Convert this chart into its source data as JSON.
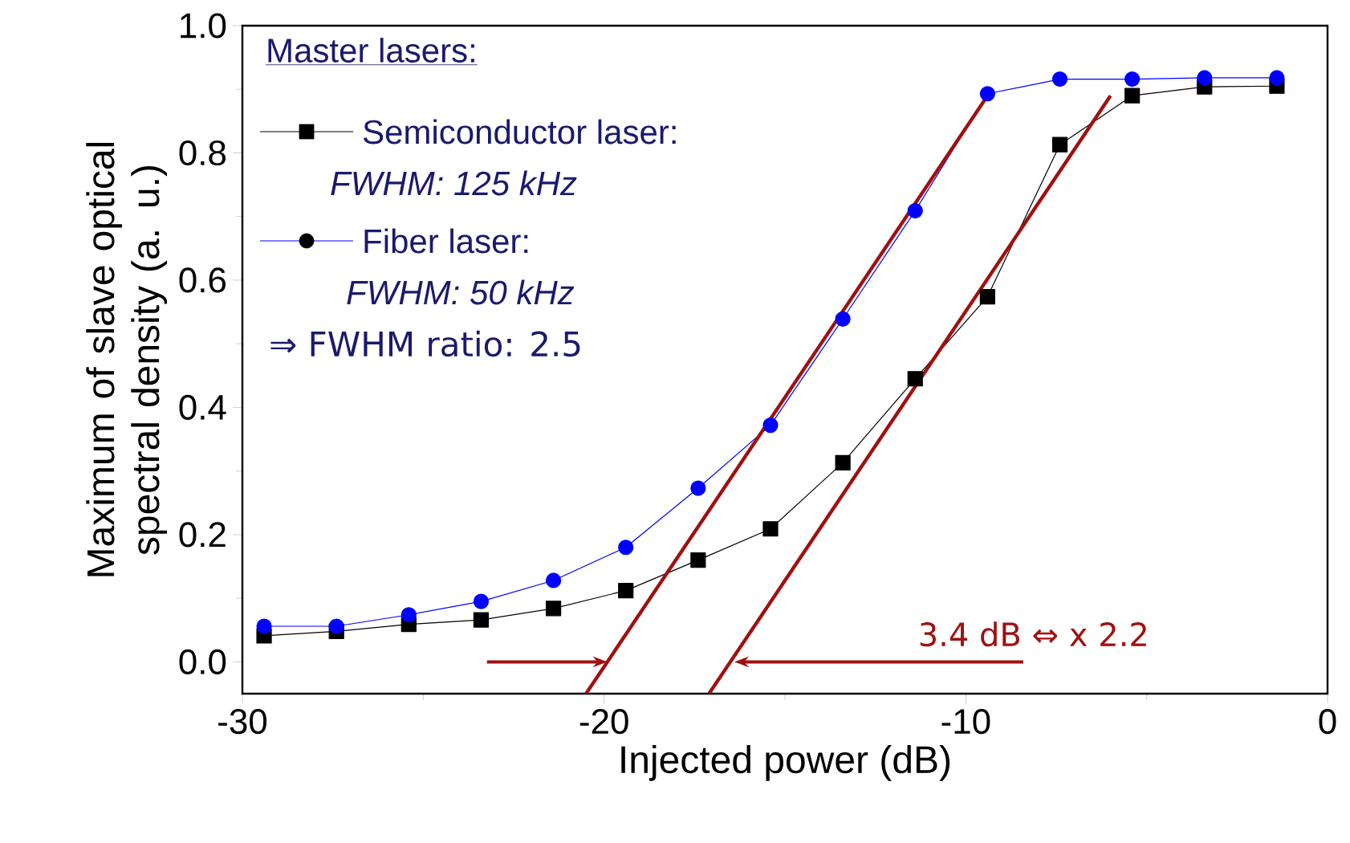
{
  "chart_data": {
    "type": "line",
    "xlabel": "Injected power (dB)",
    "ylabel": "Maximum of slave optical spectral density (a. u.)",
    "legend_title": "Master lasers:",
    "legend": "top left",
    "xlim": [
      -30,
      0
    ],
    "ylim": [
      -0.05,
      1.0
    ],
    "xticks": [
      -30,
      -20,
      -10,
      0
    ],
    "yticks": [
      {
        "value": 0,
        "label": "0.0"
      },
      {
        "value": 0.2,
        "label": "0.2"
      },
      {
        "value": 0.4,
        "label": "0.4"
      },
      {
        "value": 0.6,
        "label": "0.6"
      },
      {
        "value": 0.8,
        "label": "0.8"
      },
      {
        "value": 1,
        "label": "1.0"
      }
    ],
    "x": [
      -29.4,
      -27.4,
      -25.4,
      -23.4,
      -21.4,
      -19.4,
      -17.4,
      -15.4,
      -13.4,
      -11.4,
      -9.4,
      -7.4,
      -5.4,
      -3.4,
      -1.4
    ],
    "series": [
      {
        "name": "Semiconductor laser:",
        "color": "#000000",
        "marker": "square",
        "values": [
          0.041,
          0.048,
          0.059,
          0.066,
          0.084,
          0.112,
          0.16,
          0.209,
          0.313,
          0.445,
          0.574,
          0.813,
          0.89,
          0.904,
          0.905
        ]
      },
      {
        "name": "Fiber laser:",
        "color": "#0000ff",
        "marker": "circle",
        "values": [
          0.056,
          0.056,
          0.074,
          0.095,
          0.128,
          0.18,
          0.273,
          0.372,
          0.539,
          0.709,
          0.893,
          0.916,
          0.916,
          0.918,
          0.918
        ]
      },
      {
        "type": "line",
        "color": "#a01010",
        "marker": "none",
        "x": [
          -20.5,
          -9.4
        ],
        "values": [
          -0.05,
          0.89
        ]
      },
      {
        "type": "line",
        "color": "#a01010",
        "marker": "none",
        "x": [
          -17.1,
          -6.0
        ],
        "values": [
          -0.05,
          0.89
        ]
      }
    ],
    "annotations": [
      "*FWHM: 125 kHz*",
      "*FWHM: 50 kHz*",
      "⇒ FWHM ratio: 2.5",
      {
        "text": "3.4 dB ⇔ x 2.2",
        "x": -16.4,
        "y": 0.0
      }
    ]
  }
}
